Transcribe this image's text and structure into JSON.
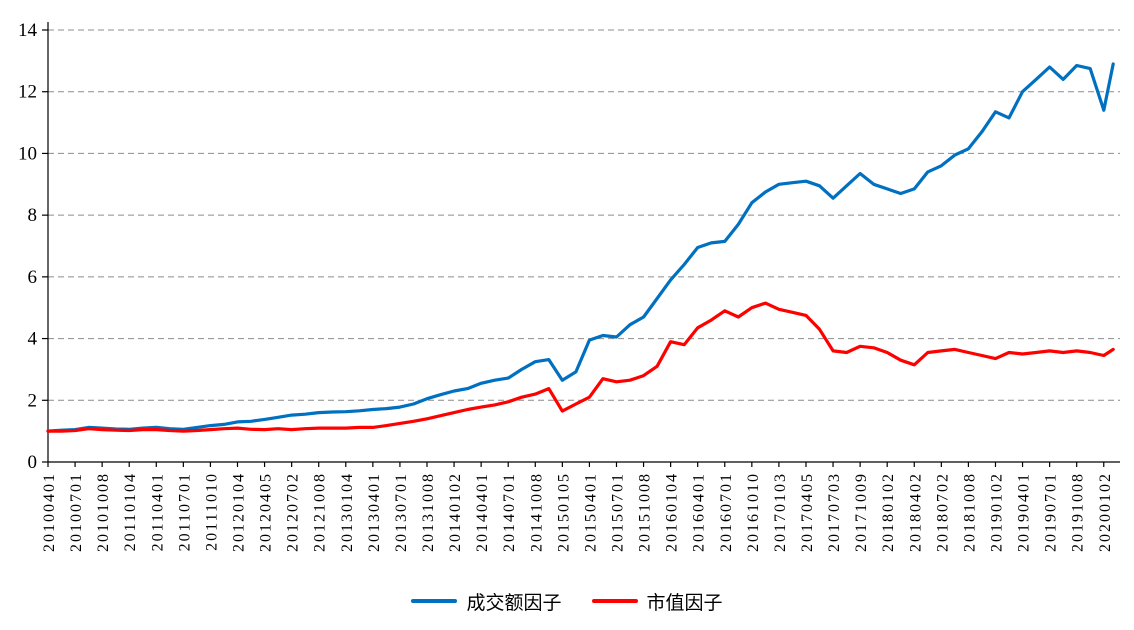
{
  "chart_data": {
    "type": "line",
    "title": "",
    "ylim": [
      0,
      14
    ],
    "xlim": [
      0,
      39.6
    ],
    "ytick_step": 2,
    "grid": "horizontal-dashed",
    "legend_position": "bottom-center",
    "x_labels": [
      "20100401",
      "20100701",
      "20101008",
      "20110104",
      "20110401",
      "20110701",
      "20111010",
      "20120104",
      "20120405",
      "20120702",
      "20121008",
      "20130104",
      "20130401",
      "20130701",
      "20131008",
      "20140102",
      "20140401",
      "20140701",
      "20141008",
      "20150105",
      "20150401",
      "20150701",
      "20151008",
      "20160104",
      "20160401",
      "20160701",
      "20161010",
      "20170103",
      "20170405",
      "20170703",
      "20171009",
      "20180102",
      "20180402",
      "20180702",
      "20181008",
      "20190102",
      "20190401",
      "20190701",
      "20191008",
      "20200102"
    ],
    "x": [
      0,
      0.5,
      1,
      1.5,
      2,
      2.5,
      3,
      3.5,
      4,
      4.5,
      5,
      5.5,
      6,
      6.5,
      7,
      7.5,
      8,
      8.5,
      9,
      9.5,
      10,
      10.5,
      11,
      11.5,
      12,
      12.5,
      13,
      13.5,
      14,
      14.5,
      15,
      15.5,
      16,
      16.5,
      17,
      17.5,
      18,
      18.5,
      19,
      19.5,
      20,
      20.5,
      21,
      21.5,
      22,
      22.5,
      23,
      23.5,
      24,
      24.5,
      25,
      25.5,
      26,
      26.5,
      27,
      27.5,
      28,
      28.5,
      29,
      29.5,
      30,
      30.5,
      31,
      31.5,
      32,
      32.5,
      33,
      33.5,
      34,
      34.5,
      35,
      35.5,
      36,
      36.5,
      37,
      37.5,
      38,
      38.5,
      39,
      39.35
    ],
    "series": [
      {
        "key": "turnover-factor",
        "name": "成交额因子",
        "color": "#0070C0",
        "values": [
          1.0,
          1.03,
          1.05,
          1.12,
          1.1,
          1.07,
          1.06,
          1.1,
          1.12,
          1.08,
          1.06,
          1.12,
          1.18,
          1.22,
          1.3,
          1.32,
          1.38,
          1.45,
          1.52,
          1.55,
          1.6,
          1.62,
          1.63,
          1.66,
          1.7,
          1.73,
          1.78,
          1.88,
          2.05,
          2.18,
          2.3,
          2.38,
          2.55,
          2.65,
          2.72,
          3.0,
          3.25,
          3.32,
          2.65,
          2.92,
          3.95,
          4.1,
          4.05,
          4.45,
          4.7,
          5.3,
          5.9,
          6.4,
          6.95,
          7.1,
          7.15,
          7.7,
          8.4,
          8.75,
          9.0,
          9.05,
          9.1,
          8.95,
          8.55,
          8.95,
          9.35,
          9.0,
          8.85,
          8.7,
          8.85,
          9.4,
          9.6,
          9.95,
          10.15,
          10.7,
          11.35,
          11.15,
          12.0,
          12.4,
          12.8,
          12.4,
          12.85,
          12.75,
          11.4,
          12.9
        ]
      },
      {
        "key": "market-cap-factor",
        "name": "市值因子",
        "color": "#FF0000",
        "values": [
          1.0,
          1.0,
          1.02,
          1.08,
          1.05,
          1.03,
          1.02,
          1.05,
          1.05,
          1.02,
          1.0,
          1.02,
          1.05,
          1.08,
          1.1,
          1.06,
          1.05,
          1.08,
          1.05,
          1.08,
          1.1,
          1.1,
          1.1,
          1.12,
          1.12,
          1.18,
          1.25,
          1.32,
          1.4,
          1.5,
          1.6,
          1.7,
          1.78,
          1.85,
          1.95,
          2.1,
          2.2,
          2.38,
          1.65,
          1.88,
          2.1,
          2.7,
          2.6,
          2.65,
          2.8,
          3.1,
          3.9,
          3.8,
          4.35,
          4.6,
          4.9,
          4.7,
          5.0,
          5.15,
          4.95,
          4.85,
          4.75,
          4.3,
          3.6,
          3.55,
          3.75,
          3.7,
          3.55,
          3.3,
          3.15,
          3.55,
          3.6,
          3.65,
          3.55,
          3.45,
          3.35,
          3.55,
          3.5,
          3.55,
          3.6,
          3.55,
          3.6,
          3.55,
          3.45,
          3.65
        ]
      }
    ],
    "y_tick_labels": [
      "0",
      "2",
      "4",
      "6",
      "8",
      "10",
      "12",
      "14"
    ]
  }
}
